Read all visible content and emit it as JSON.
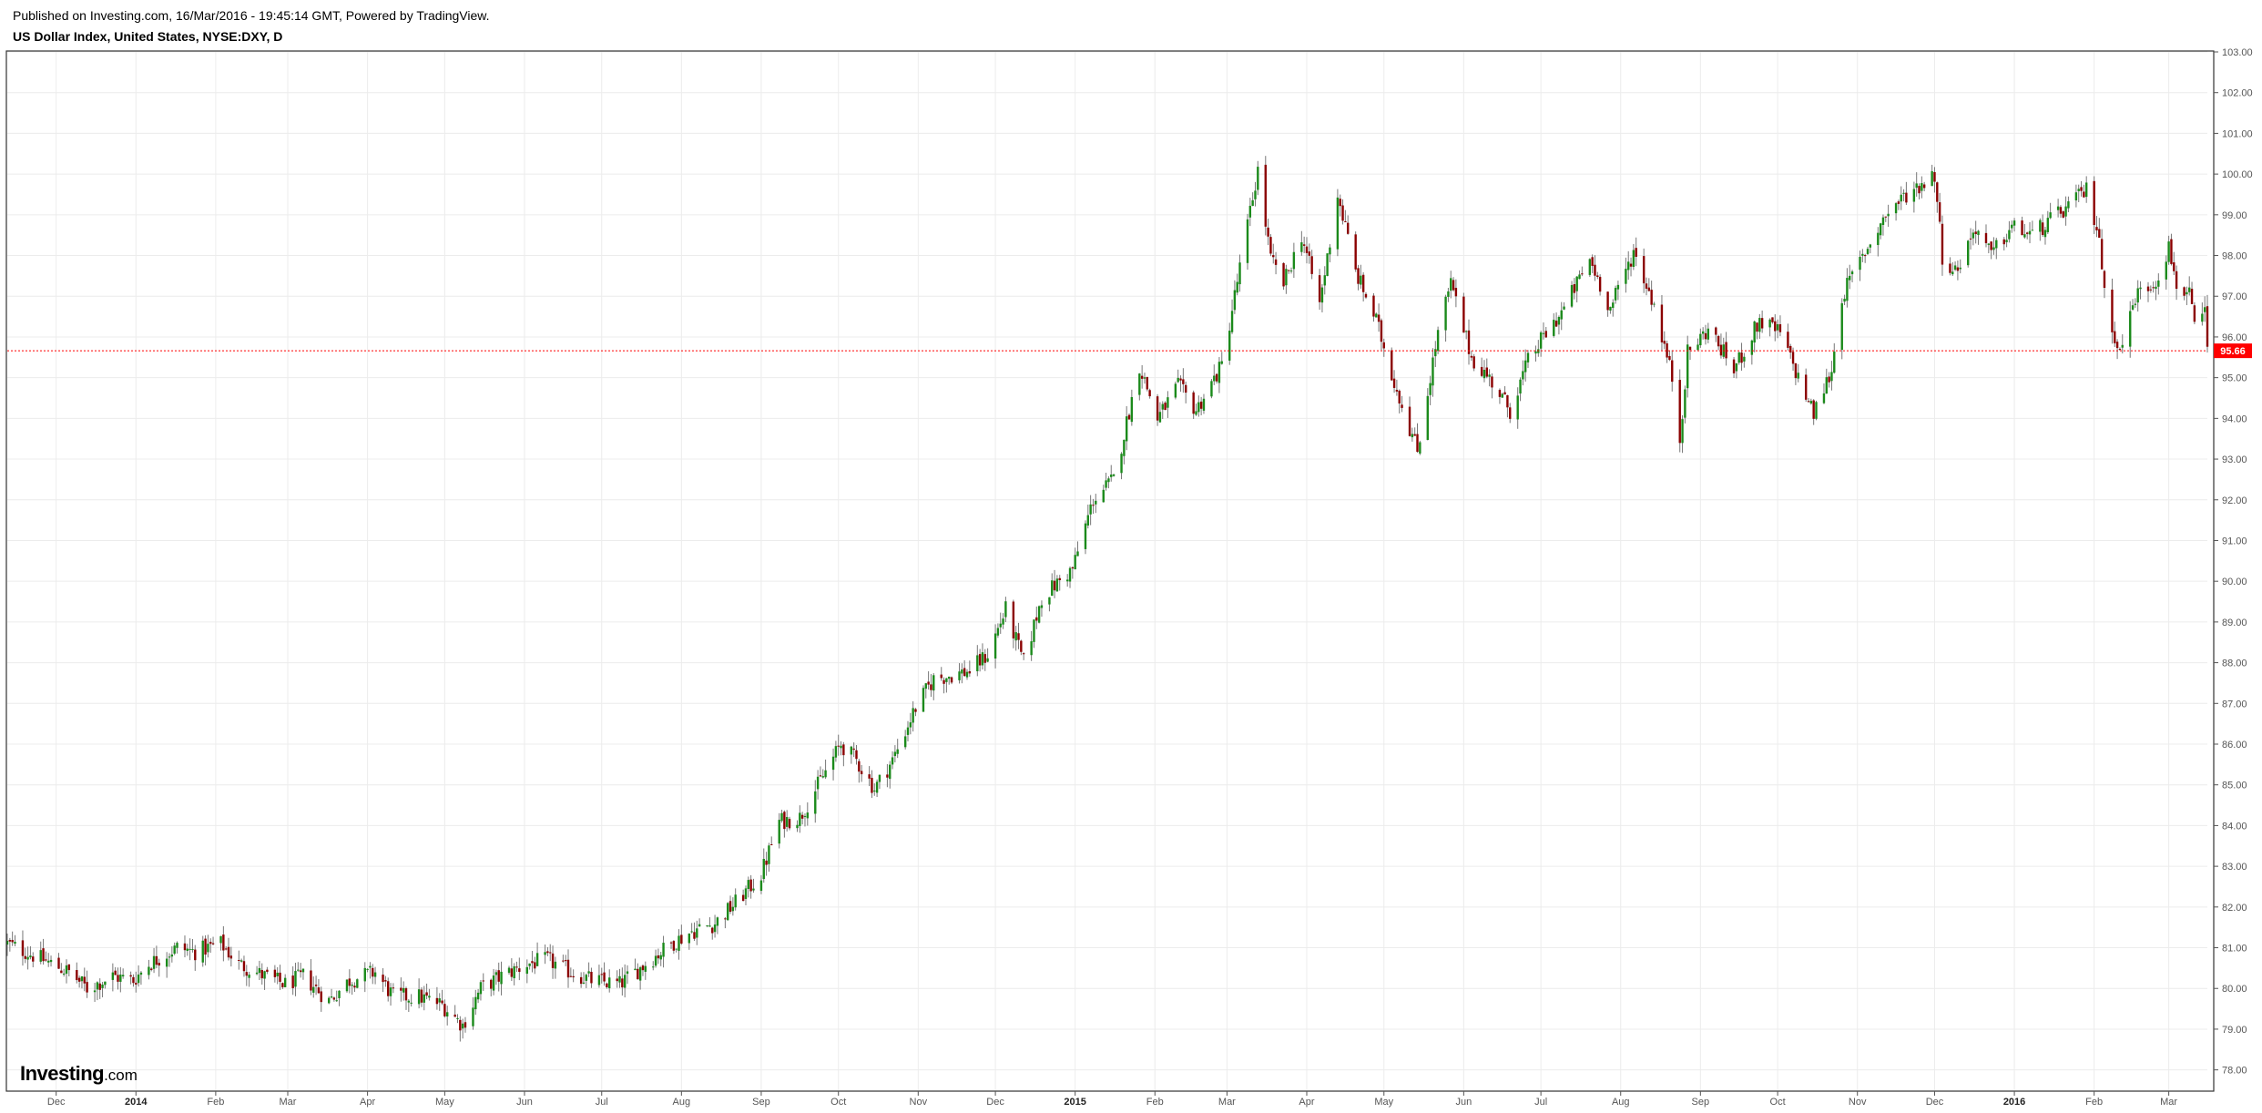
{
  "header": {
    "published": "Published on Investing.com, 16/Mar/2016 - 19:45:14 GMT, Powered by TradingView.",
    "symbol": "US Dollar Index, United States, NYSE:DXY, D"
  },
  "logo": {
    "brand": "Investing",
    "suffix": ".com"
  },
  "colors": {
    "up": "#1b8a1b",
    "down": "#8b0000",
    "wick": "#777777",
    "last_price": "#ff0000",
    "grid": "#ececec"
  },
  "chart_data": {
    "type": "candlestick",
    "title": "",
    "ylim": [
      77.5,
      103.0
    ],
    "yticks": [
      "78.00",
      "79.00",
      "80.00",
      "81.00",
      "82.00",
      "83.00",
      "84.00",
      "85.00",
      "86.00",
      "87.00",
      "88.00",
      "89.00",
      "90.00",
      "91.00",
      "92.00",
      "93.00",
      "94.00",
      "95.00",
      "96.00",
      "97.00",
      "98.00",
      "99.00",
      "100.00",
      "101.00",
      "102.00",
      "103.00"
    ],
    "x_start": "2013-11-12",
    "x_end": "2016-03-16",
    "xticks": [
      {
        "date": "2013-12-01",
        "label": "Dec",
        "bold": false
      },
      {
        "date": "2014-01-01",
        "label": "2014",
        "bold": true
      },
      {
        "date": "2014-02-01",
        "label": "Feb",
        "bold": false
      },
      {
        "date": "2014-03-01",
        "label": "Mar",
        "bold": false
      },
      {
        "date": "2014-04-01",
        "label": "Apr",
        "bold": false
      },
      {
        "date": "2014-05-01",
        "label": "May",
        "bold": false
      },
      {
        "date": "2014-06-01",
        "label": "Jun",
        "bold": false
      },
      {
        "date": "2014-07-01",
        "label": "Jul",
        "bold": false
      },
      {
        "date": "2014-08-01",
        "label": "Aug",
        "bold": false
      },
      {
        "date": "2014-09-01",
        "label": "Sep",
        "bold": false
      },
      {
        "date": "2014-10-01",
        "label": "Oct",
        "bold": false
      },
      {
        "date": "2014-11-01",
        "label": "Nov",
        "bold": false
      },
      {
        "date": "2014-12-01",
        "label": "Dec",
        "bold": false
      },
      {
        "date": "2015-01-01",
        "label": "2015",
        "bold": true
      },
      {
        "date": "2015-02-01",
        "label": "Feb",
        "bold": false
      },
      {
        "date": "2015-03-01",
        "label": "Mar",
        "bold": false
      },
      {
        "date": "2015-04-01",
        "label": "Apr",
        "bold": false
      },
      {
        "date": "2015-05-01",
        "label": "May",
        "bold": false
      },
      {
        "date": "2015-06-01",
        "label": "Jun",
        "bold": false
      },
      {
        "date": "2015-07-01",
        "label": "Jul",
        "bold": false
      },
      {
        "date": "2015-08-01",
        "label": "Aug",
        "bold": false
      },
      {
        "date": "2015-09-01",
        "label": "Sep",
        "bold": false
      },
      {
        "date": "2015-10-01",
        "label": "Oct",
        "bold": false
      },
      {
        "date": "2015-11-01",
        "label": "Nov",
        "bold": false
      },
      {
        "date": "2015-12-01",
        "label": "Dec",
        "bold": false
      },
      {
        "date": "2016-01-01",
        "label": "2016",
        "bold": true
      },
      {
        "date": "2016-02-01",
        "label": "Feb",
        "bold": false
      },
      {
        "date": "2016-03-01",
        "label": "Mar",
        "bold": false
      }
    ],
    "close_path": [
      [
        "2013-11-12",
        81.1
      ],
      [
        "2013-11-26",
        80.7
      ],
      [
        "2013-12-06",
        80.4
      ],
      [
        "2013-12-13",
        80.0
      ],
      [
        "2013-12-23",
        80.3
      ],
      [
        "2013-12-31",
        80.2
      ],
      [
        "2014-01-06",
        80.6
      ],
      [
        "2014-01-17",
        81.0
      ],
      [
        "2014-01-24",
        80.9
      ],
      [
        "2014-02-03",
        81.1
      ],
      [
        "2014-02-10",
        80.6
      ],
      [
        "2014-02-20",
        80.3
      ],
      [
        "2014-02-28",
        80.1
      ],
      [
        "2014-03-07",
        80.3
      ],
      [
        "2014-03-17",
        79.7
      ],
      [
        "2014-03-25",
        80.2
      ],
      [
        "2014-04-04",
        80.4
      ],
      [
        "2014-04-11",
        79.8
      ],
      [
        "2014-04-21",
        79.8
      ],
      [
        "2014-04-30",
        79.6
      ],
      [
        "2014-05-08",
        79.1
      ],
      [
        "2014-05-15",
        80.0
      ],
      [
        "2014-05-23",
        80.3
      ],
      [
        "2014-06-02",
        80.6
      ],
      [
        "2014-06-10",
        80.7
      ],
      [
        "2014-06-19",
        80.4
      ],
      [
        "2014-06-27",
        80.2
      ],
      [
        "2014-07-08",
        80.1
      ],
      [
        "2014-07-18",
        80.6
      ],
      [
        "2014-07-28",
        81.1
      ],
      [
        "2014-08-05",
        81.4
      ],
      [
        "2014-08-14",
        81.6
      ],
      [
        "2014-08-22",
        82.1
      ],
      [
        "2014-09-01",
        82.8
      ],
      [
        "2014-09-08",
        84.1
      ],
      [
        "2014-09-16",
        84.2
      ],
      [
        "2014-09-24",
        85.1
      ],
      [
        "2014-10-02",
        86.0
      ],
      [
        "2014-10-08",
        85.6
      ],
      [
        "2014-10-15",
        84.9
      ],
      [
        "2014-10-22",
        85.6
      ],
      [
        "2014-10-31",
        86.9
      ],
      [
        "2014-11-07",
        87.6
      ],
      [
        "2014-11-14",
        87.7
      ],
      [
        "2014-11-21",
        87.8
      ],
      [
        "2014-11-28",
        88.2
      ],
      [
        "2014-12-05",
        89.3
      ],
      [
        "2014-12-12",
        88.0
      ],
      [
        "2014-12-19",
        89.6
      ],
      [
        "2014-12-31",
        90.3
      ],
      [
        "2015-01-08",
        92.0
      ],
      [
        "2015-01-16",
        92.5
      ],
      [
        "2015-01-26",
        95.3
      ],
      [
        "2015-02-02",
        94.0
      ],
      [
        "2015-02-10",
        94.8
      ],
      [
        "2015-02-17",
        94.2
      ],
      [
        "2015-02-27",
        95.3
      ],
      [
        "2015-03-06",
        97.7
      ],
      [
        "2015-03-13",
        100.1
      ],
      [
        "2015-03-18",
        97.9
      ],
      [
        "2015-03-23",
        97.3
      ],
      [
        "2015-03-30",
        98.5
      ],
      [
        "2015-04-06",
        96.8
      ],
      [
        "2015-04-13",
        99.5
      ],
      [
        "2015-04-20",
        97.6
      ],
      [
        "2015-04-28",
        96.4
      ],
      [
        "2015-05-04",
        95.1
      ],
      [
        "2015-05-14",
        93.2
      ],
      [
        "2015-05-22",
        96.1
      ],
      [
        "2015-05-27",
        97.3
      ],
      [
        "2015-06-04",
        95.5
      ],
      [
        "2015-06-12",
        94.9
      ],
      [
        "2015-06-19",
        94.2
      ],
      [
        "2015-06-26",
        95.4
      ],
      [
        "2015-07-02",
        96.0
      ],
      [
        "2015-07-09",
        96.6
      ],
      [
        "2015-07-20",
        97.9
      ],
      [
        "2015-07-28",
        96.7
      ],
      [
        "2015-08-06",
        98.1
      ],
      [
        "2015-08-14",
        96.8
      ],
      [
        "2015-08-21",
        95.0
      ],
      [
        "2015-08-24",
        93.5
      ],
      [
        "2015-08-27",
        95.6
      ],
      [
        "2015-09-04",
        96.2
      ],
      [
        "2015-09-14",
        95.2
      ],
      [
        "2015-09-24",
        96.4
      ],
      [
        "2015-10-02",
        96.1
      ],
      [
        "2015-10-09",
        95.0
      ],
      [
        "2015-10-15",
        94.1
      ],
      [
        "2015-10-22",
        95.2
      ],
      [
        "2015-10-26",
        97.0
      ],
      [
        "2015-11-04",
        98.1
      ],
      [
        "2015-11-12",
        99.0
      ],
      [
        "2015-11-20",
        99.5
      ],
      [
        "2015-12-01",
        100.0
      ],
      [
        "2015-12-04",
        98.0
      ],
      [
        "2015-12-09",
        97.6
      ],
      [
        "2015-12-17",
        98.7
      ],
      [
        "2015-12-23",
        98.0
      ],
      [
        "2015-12-31",
        98.7
      ],
      [
        "2016-01-08",
        98.5
      ],
      [
        "2016-01-20",
        99.1
      ],
      [
        "2016-01-29",
        99.6
      ],
      [
        "2016-02-03",
        98.5
      ],
      [
        "2016-02-05",
        97.0
      ],
      [
        "2016-02-11",
        95.6
      ],
      [
        "2016-02-17",
        97.0
      ],
      [
        "2016-02-25",
        97.4
      ],
      [
        "2016-03-01",
        98.2
      ],
      [
        "2016-03-04",
        97.3
      ],
      [
        "2016-03-09",
        97.0
      ],
      [
        "2016-03-11",
        96.2
      ],
      [
        "2016-03-15",
        96.6
      ],
      [
        "2016-03-16",
        95.66
      ]
    ],
    "last_price": "95.66",
    "last_value": 95.66
  }
}
